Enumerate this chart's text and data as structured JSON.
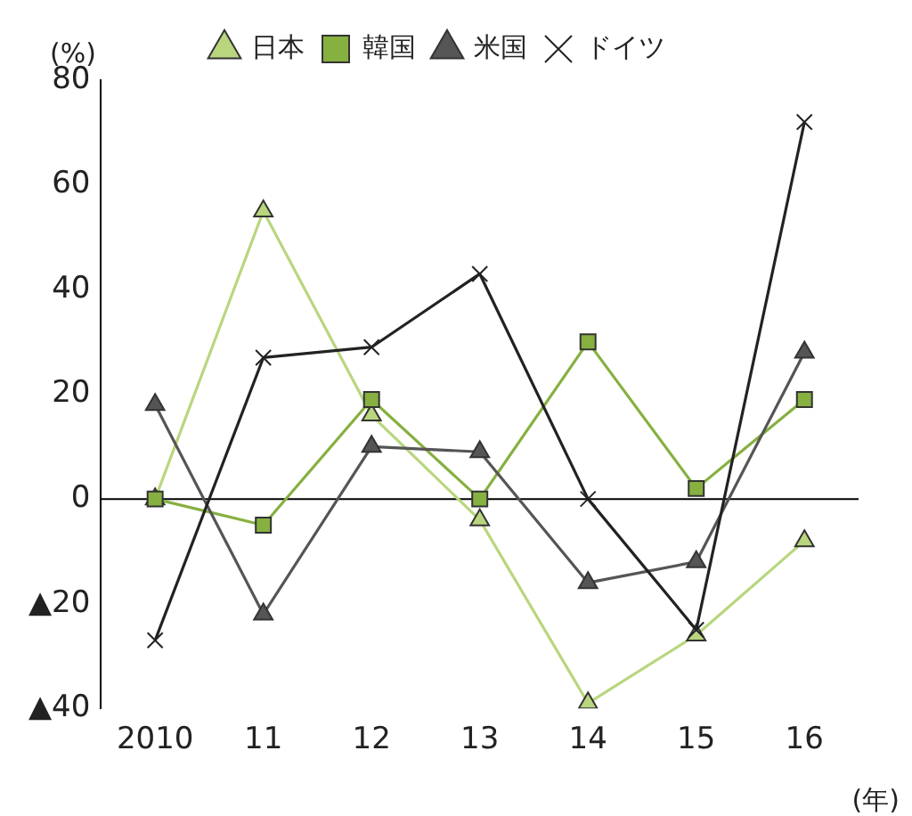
{
  "chart_data": {
    "type": "line",
    "ylabel": "(%)",
    "xlabel": "(年)",
    "categories": [
      "2010",
      "11",
      "12",
      "13",
      "14",
      "15",
      "16"
    ],
    "series": [
      {
        "name": "日本",
        "color": "#b9d67e",
        "marker": "triangle",
        "values": [
          0,
          55,
          16,
          -4,
          -39,
          -26,
          -8
        ]
      },
      {
        "name": "韓国",
        "color": "#86b040",
        "marker": "square",
        "values": [
          0,
          -5,
          19,
          0,
          30,
          2,
          19
        ]
      },
      {
        "name": "米国",
        "color": "#555555",
        "marker": "triangle",
        "values": [
          18,
          -22,
          10,
          9,
          -16,
          -12,
          28
        ]
      },
      {
        "name": "ドイツ",
        "color": "#222222",
        "marker": "cross",
        "values": [
          -27,
          27,
          29,
          43,
          0,
          -25,
          72
        ]
      }
    ],
    "ylim": [
      -40,
      80
    ],
    "yticks": [
      {
        "value": -40,
        "label": "▲40"
      },
      {
        "value": -20,
        "label": "▲20"
      },
      0,
      20,
      40,
      60,
      80
    ],
    "ref_lines": [
      {
        "axis": "y",
        "value": 0,
        "color": "#000000"
      }
    ],
    "grid": false,
    "legend": "top"
  }
}
